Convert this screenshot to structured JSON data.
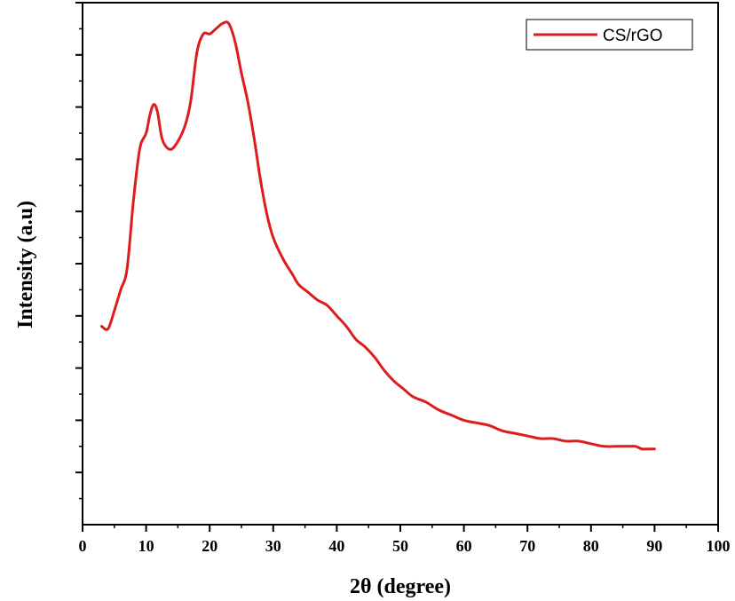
{
  "chart_data": {
    "type": "line",
    "xlabel": "2θ (degree)",
    "ylabel": "Intensity (a.u)",
    "xlim": [
      0,
      100
    ],
    "ylim": [
      0,
      100
    ],
    "x_ticks": [
      0,
      10,
      20,
      30,
      40,
      50,
      60,
      70,
      80,
      90,
      100
    ],
    "y_ticks": [
      10,
      20,
      30,
      40,
      50,
      60,
      70,
      80,
      90,
      100
    ],
    "y_tick_labels_shown": false,
    "grid": false,
    "legend_position": "top-right",
    "colors": {
      "series": "#dd1c1c",
      "axis": "#000000"
    },
    "series": [
      {
        "name": "CS/rGO",
        "points": [
          [
            3.0,
            38.0
          ],
          [
            4.0,
            37.5
          ],
          [
            5.0,
            41.0
          ],
          [
            6.0,
            45.0
          ],
          [
            7.0,
            49.0
          ],
          [
            8.0,
            62.0
          ],
          [
            9.0,
            72.0
          ],
          [
            10.0,
            75.0
          ],
          [
            10.6,
            78.5
          ],
          [
            11.2,
            80.5
          ],
          [
            11.8,
            79.0
          ],
          [
            12.5,
            74.0
          ],
          [
            13.5,
            72.0
          ],
          [
            14.5,
            72.5
          ],
          [
            16.0,
            76.0
          ],
          [
            17.0,
            81.0
          ],
          [
            18.0,
            90.5
          ],
          [
            19.0,
            94.0
          ],
          [
            20.0,
            94.0
          ],
          [
            21.0,
            95.0
          ],
          [
            22.0,
            96.0
          ],
          [
            23.0,
            96.0
          ],
          [
            24.0,
            92.5
          ],
          [
            25.0,
            86.5
          ],
          [
            26.0,
            81.0
          ],
          [
            27.0,
            74.0
          ],
          [
            28.0,
            66.0
          ],
          [
            29.0,
            59.5
          ],
          [
            30.0,
            55.0
          ],
          [
            31.5,
            51.0
          ],
          [
            33.0,
            48.0
          ],
          [
            34.0,
            46.0
          ],
          [
            35.5,
            44.5
          ],
          [
            37.0,
            43.0
          ],
          [
            38.5,
            42.0
          ],
          [
            40.0,
            40.0
          ],
          [
            41.5,
            38.0
          ],
          [
            43.0,
            35.5
          ],
          [
            44.5,
            34.0
          ],
          [
            46.0,
            32.0
          ],
          [
            47.5,
            29.5
          ],
          [
            49.0,
            27.5
          ],
          [
            50.5,
            26.0
          ],
          [
            52.0,
            24.5
          ],
          [
            54.0,
            23.5
          ],
          [
            56.0,
            22.0
          ],
          [
            58.0,
            21.0
          ],
          [
            60.0,
            20.0
          ],
          [
            62.0,
            19.5
          ],
          [
            64.0,
            19.0
          ],
          [
            66.0,
            18.0
          ],
          [
            68.0,
            17.5
          ],
          [
            70.0,
            17.0
          ],
          [
            72.0,
            16.5
          ],
          [
            74.0,
            16.5
          ],
          [
            76.0,
            16.0
          ],
          [
            78.0,
            16.0
          ],
          [
            80.0,
            15.5
          ],
          [
            82.0,
            15.0
          ],
          [
            84.0,
            15.0
          ],
          [
            86.0,
            15.0
          ],
          [
            87.0,
            15.0
          ],
          [
            88.0,
            14.5
          ],
          [
            89.0,
            14.5
          ],
          [
            90.0,
            14.5
          ]
        ]
      }
    ]
  }
}
